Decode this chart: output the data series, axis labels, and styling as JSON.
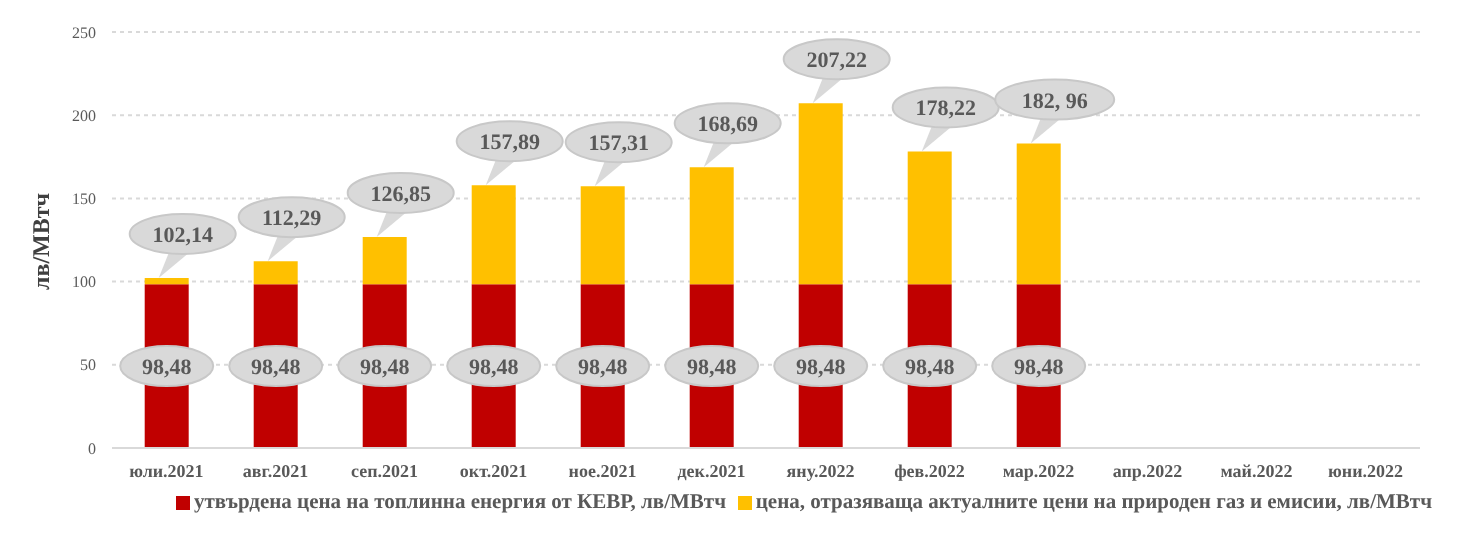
{
  "chart_data": {
    "type": "bar",
    "stacked": true,
    "ylabel": "лв/МВтч",
    "categories": [
      "юли.2021",
      "авг.2021",
      "сеп.2021",
      "окт.2021",
      "ное.2021",
      "дек.2021",
      "яну.2022",
      "фев.2022",
      "мар.2022",
      "апр.2022",
      "май.2022",
      "юни.2022"
    ],
    "series": [
      {
        "name": "утвърдена цена на топлинна енергия от КЕВР, лв/МВтч",
        "color": "#c00000",
        "values": [
          98.48,
          98.48,
          98.48,
          98.48,
          98.48,
          98.48,
          98.48,
          98.48,
          98.48,
          null,
          null,
          null
        ],
        "value_labels": [
          "98,48",
          "98,48",
          "98,48",
          "98,48",
          "98,48",
          "98,48",
          "98,48",
          "98,48",
          "98,48",
          null,
          null,
          null
        ]
      },
      {
        "name": "цена, отразяваща актуалните  цени на природен газ и емисии, лв/МВтч",
        "color": "#ffc000",
        "values": [
          3.66,
          13.81,
          28.37,
          59.41,
          58.83,
          70.21,
          108.74,
          79.74,
          84.48,
          null,
          null,
          null
        ]
      }
    ],
    "totals": [
      "102,14",
      "112,29",
      "126,85",
      "157,89",
      "157,31",
      "168,69",
      "207,22",
      "178,22",
      "182, 96",
      null,
      null,
      null
    ],
    "ylim": [
      0,
      250
    ],
    "yticks": [
      0,
      50,
      100,
      150,
      200,
      250
    ],
    "grid": "y",
    "legend": "bottom"
  }
}
